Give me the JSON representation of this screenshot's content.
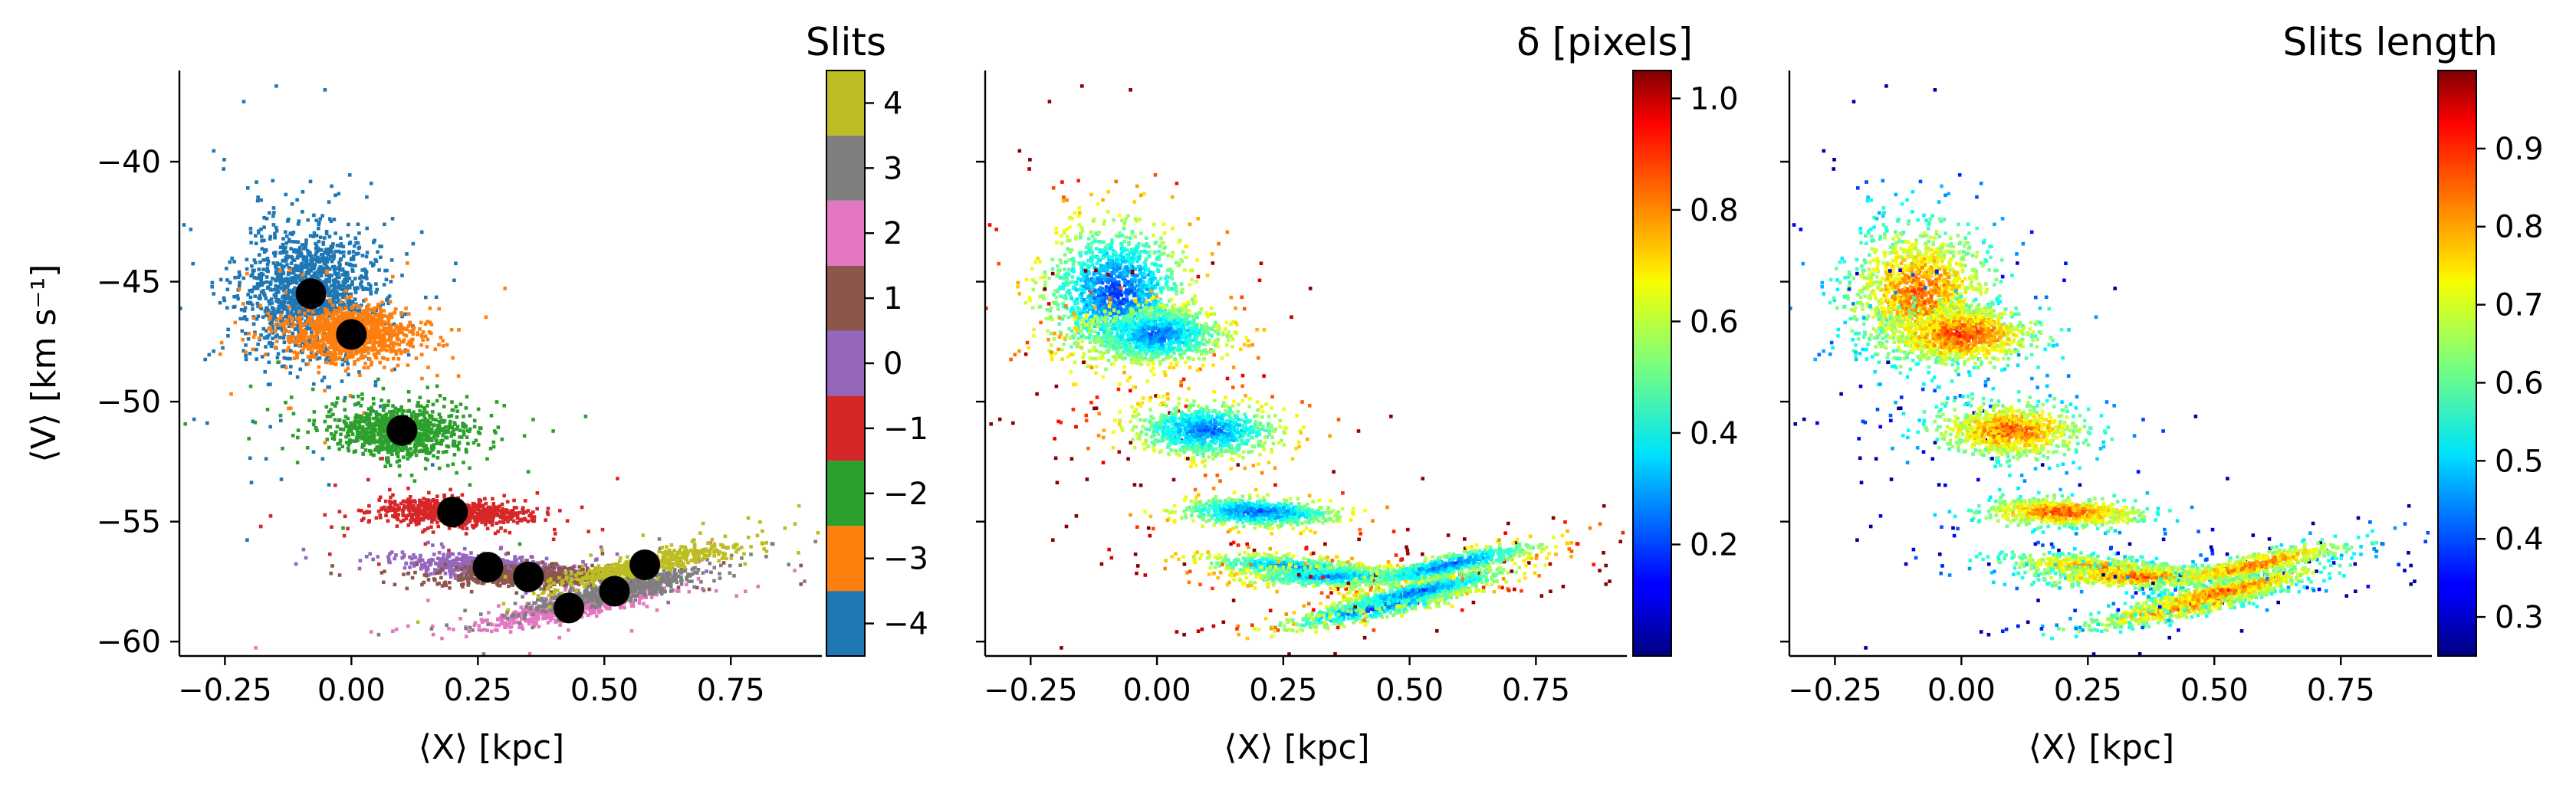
{
  "colors": {
    "slits": [
      "#1f77b4",
      "#ff7f0e",
      "#2ca02c",
      "#d62728",
      "#9467bd",
      "#8c564b",
      "#e377c2",
      "#7f7f7f",
      "#bcbd22",
      "#17becf"
    ],
    "centroid": "#000000",
    "axis": "#000000",
    "colormap": "jet"
  },
  "panels": [
    {
      "id": "slits",
      "xlabel": "⟨X⟩ [kpc]",
      "ylabel": "⟨V⟩ [km s⁻¹]",
      "colorbar_title": "Slits",
      "show_centroids": true
    },
    {
      "id": "delta",
      "xlabel": "⟨X⟩ [kpc]",
      "ylabel": "",
      "colorbar_title": "δ [pixels]",
      "show_centroids": false
    },
    {
      "id": "length",
      "xlabel": "⟨X⟩ [kpc]",
      "ylabel": "",
      "colorbar_title": "Slits length",
      "show_centroids": false
    }
  ],
  "chart_data": {
    "type": "scatter",
    "xlim": [
      -0.34,
      0.93
    ],
    "ylim": [
      -60.6,
      -36.2
    ],
    "x_ticks": [
      -0.25,
      0.0,
      0.25,
      0.5,
      0.75
    ],
    "x_tick_labels": [
      "−0.25",
      "0.00",
      "0.25",
      "0.50",
      "0.75"
    ],
    "y_ticks": [
      -40,
      -45,
      -50,
      -55,
      -60
    ],
    "y_tick_labels": [
      "−40",
      "−45",
      "−50",
      "−55",
      "−60"
    ],
    "grid": false,
    "clusters": [
      {
        "slit": -4,
        "center": [
          -0.08,
          -45.5
        ],
        "spread": [
          0.065,
          1.3
        ],
        "tilt": 0,
        "count": 1500,
        "delta_base": 0.18,
        "length_base": 0.85
      },
      {
        "slit": -3,
        "center": [
          0.0,
          -47.2
        ],
        "spread": [
          0.065,
          0.55
        ],
        "tilt": 0,
        "count": 1000,
        "delta_base": 0.22,
        "length_base": 0.88
      },
      {
        "slit": -2,
        "center": [
          0.1,
          -51.2
        ],
        "spread": [
          0.07,
          0.55
        ],
        "tilt": -0.5,
        "count": 900,
        "delta_base": 0.22,
        "length_base": 0.85
      },
      {
        "slit": -1,
        "center": [
          0.2,
          -54.6
        ],
        "spread": [
          0.075,
          0.28
        ],
        "tilt": -0.5,
        "count": 700,
        "delta_base": 0.2,
        "length_base": 0.86
      },
      {
        "slit": 0,
        "center": [
          0.27,
          -56.9
        ],
        "spread": [
          0.09,
          0.22
        ],
        "tilt": -1.5,
        "count": 600,
        "delta_base": 0.25,
        "length_base": 0.82
      },
      {
        "slit": 1,
        "center": [
          0.35,
          -57.3
        ],
        "spread": [
          0.09,
          0.22
        ],
        "tilt": 0,
        "count": 500,
        "delta_base": 0.25,
        "length_base": 0.85
      },
      {
        "slit": 2,
        "center": [
          0.43,
          -58.6
        ],
        "spread": [
          0.09,
          0.22
        ],
        "tilt": 4,
        "count": 600,
        "delta_base": 0.2,
        "length_base": 0.85
      },
      {
        "slit": 3,
        "center": [
          0.52,
          -57.9
        ],
        "spread": [
          0.09,
          0.22
        ],
        "tilt": 4.5,
        "count": 600,
        "delta_base": 0.22,
        "length_base": 0.85
      },
      {
        "slit": 4,
        "center": [
          0.58,
          -56.8
        ],
        "spread": [
          0.09,
          0.22
        ],
        "tilt": 4.5,
        "count": 600,
        "delta_base": 0.22,
        "length_base": 0.84
      }
    ],
    "centroids": [
      {
        "slit": -4,
        "x": -0.08,
        "y": -45.5
      },
      {
        "slit": -3,
        "x": 0.0,
        "y": -47.2
      },
      {
        "slit": -2,
        "x": 0.1,
        "y": -51.2
      },
      {
        "slit": -1,
        "x": 0.2,
        "y": -54.6
      },
      {
        "slit": 0,
        "x": 0.27,
        "y": -56.9
      },
      {
        "slit": 1,
        "x": 0.35,
        "y": -57.3
      },
      {
        "slit": 2,
        "x": 0.43,
        "y": -58.6
      },
      {
        "slit": 3,
        "x": 0.52,
        "y": -57.9
      },
      {
        "slit": 4,
        "x": 0.58,
        "y": -56.8
      }
    ],
    "colorbars": [
      {
        "panel": "slits",
        "kind": "discrete",
        "range": [
          -4.5,
          4.5
        ],
        "ticks": [
          4,
          3,
          2,
          1,
          0,
          -1,
          -2,
          -3,
          -4
        ],
        "tick_labels": [
          "4",
          "3",
          "2",
          "1",
          "0",
          "−1",
          "−2",
          "−3",
          "−4"
        ]
      },
      {
        "panel": "delta",
        "kind": "continuous",
        "range": [
          0.0,
          1.05
        ],
        "ticks": [
          1.0,
          0.8,
          0.6,
          0.4,
          0.2
        ],
        "tick_labels": [
          "1.0",
          "0.8",
          "0.6",
          "0.4",
          "0.2"
        ]
      },
      {
        "panel": "length",
        "kind": "continuous",
        "range": [
          0.25,
          1.0
        ],
        "ticks": [
          0.9,
          0.8,
          0.7,
          0.6,
          0.5,
          0.4,
          0.3
        ],
        "tick_labels": [
          "0.9",
          "0.8",
          "0.7",
          "0.6",
          "0.5",
          "0.4",
          "0.3"
        ]
      }
    ]
  }
}
